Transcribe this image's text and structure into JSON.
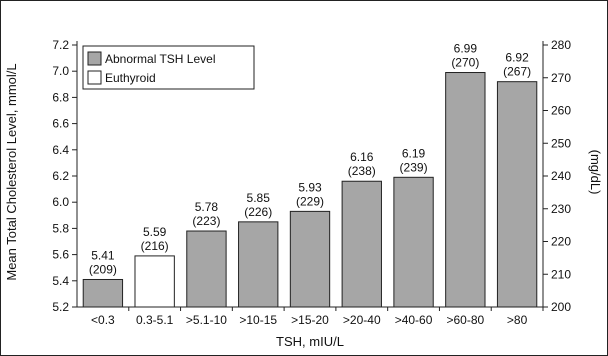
{
  "chart_data": {
    "type": "bar",
    "xlabel": "TSH, mIU/L",
    "ylabel": "Mean Total Cholesterol Level, mmol/L",
    "y2label": "(mg/dL)",
    "ylim": [
      5.2,
      7.2
    ],
    "yticks": [
      "5.2",
      "5.4",
      "5.6",
      "5.8",
      "6.0",
      "6.2",
      "6.4",
      "6.6",
      "6.8",
      "7.0",
      "7.2"
    ],
    "y2lim": [
      200,
      280
    ],
    "y2ticks": [
      "200",
      "210",
      "220",
      "230",
      "240",
      "250",
      "260",
      "270",
      "280"
    ],
    "legend_position": "top-left",
    "grid": false,
    "legend": [
      {
        "name": "Abnormal TSH Level",
        "color": "#a6a6a6"
      },
      {
        "name": "Euthyroid",
        "color": "#ffffff"
      }
    ],
    "categories": [
      "<0.3",
      "0.3-5.1",
      ">5.1-10",
      ">10-15",
      ">15-20",
      ">20-40",
      ">40-60",
      ">60-80",
      ">80"
    ],
    "values": [
      5.41,
      5.59,
      5.78,
      5.85,
      5.93,
      6.16,
      6.19,
      6.99,
      6.92
    ],
    "mgdl_values": [
      209,
      216,
      223,
      226,
      229,
      238,
      239,
      270,
      267
    ],
    "value_labels": [
      "5.41",
      "5.59",
      "5.78",
      "5.85",
      "5.93",
      "6.16",
      "6.19",
      "6.99",
      "6.92"
    ],
    "mgdl_labels": [
      "(209)",
      "(216)",
      "(223)",
      "(226)",
      "(229)",
      "(238)",
      "(239)",
      "(270)",
      "(267)"
    ],
    "groups": [
      "Abnormal TSH Level",
      "Euthyroid",
      "Abnormal TSH Level",
      "Abnormal TSH Level",
      "Abnormal TSH Level",
      "Abnormal TSH Level",
      "Abnormal TSH Level",
      "Abnormal TSH Level",
      "Abnormal TSH Level"
    ]
  }
}
